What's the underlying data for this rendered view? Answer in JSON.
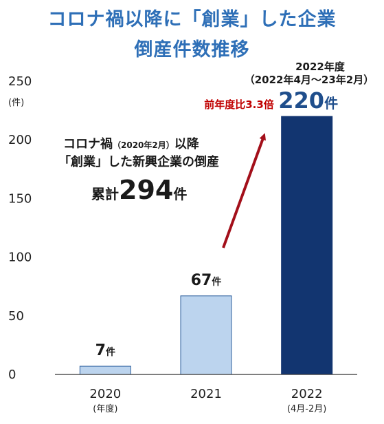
{
  "title_line1": "コロナ禍以降に「創業」した企業",
  "title_line2": "倒産件数推移",
  "colors": {
    "title": "#2e6fb7",
    "light_bar": "#bcd4ee",
    "dark_bar": "#123570",
    "arrow": "#a30f1a",
    "ratio": "#c00000",
    "highlight": "#1f4e8c"
  },
  "chart_data": {
    "type": "bar",
    "title": "コロナ禍以降に「創業」した企業 倒産件数推移",
    "y_unit_label": "(件)",
    "ylim": [
      0,
      250
    ],
    "yticks": [
      0,
      50,
      100,
      150,
      200,
      250
    ],
    "categories": [
      "2020",
      "2021",
      "2022"
    ],
    "category_sublabels": [
      "(年度)",
      "",
      "(4月-2月)"
    ],
    "values": [
      7,
      67,
      220
    ],
    "unit": "件",
    "highlight_index": 2,
    "grid": false,
    "highlight_period_line1": "2022年度",
    "highlight_period_line2": "（2022年4月～23年2月）",
    "ratio_label": "前年度比3.3倍",
    "note_line1_a": "コロナ禍",
    "note_line1_b": "（2020年2月）",
    "note_line1_c": "以降",
    "note_line2": "「創業」した新興企業の倒産",
    "total_prefix": "累計",
    "total_value": "294",
    "total_unit": "件"
  }
}
